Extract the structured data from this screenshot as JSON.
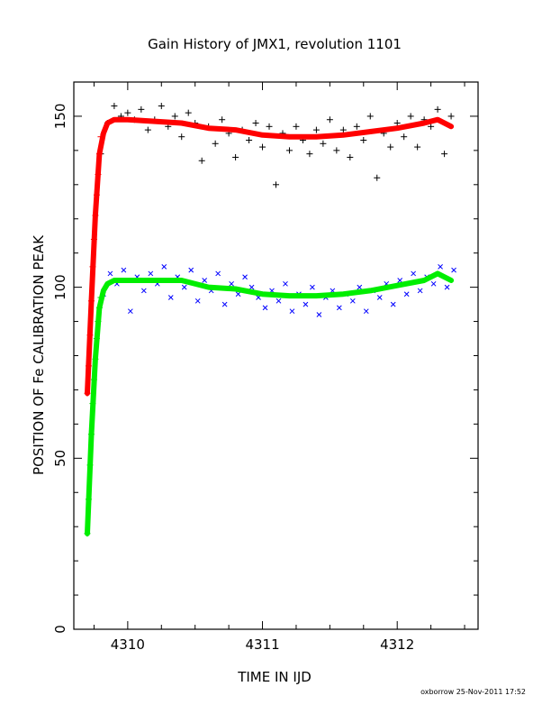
{
  "chart_data": {
    "type": "scatter",
    "title": "Gain History of JMX1, revolution 1101",
    "xlabel": "TIME IN IJD",
    "ylabel": "POSITION OF Fe CALIBRATION PEAK",
    "xlim": [
      4309.6,
      4312.6
    ],
    "ylim": [
      0,
      160
    ],
    "x_ticks": [
      4310,
      4311,
      4312
    ],
    "x_tick_labels": [
      "4310",
      "4311",
      "4312"
    ],
    "y_ticks": [
      0,
      50,
      100,
      150
    ],
    "y_tick_labels": [
      "0",
      "50",
      "100",
      "150"
    ],
    "grid": false,
    "footer": "oxborrow 25-Nov-2011 17:52",
    "series": [
      {
        "marker": "plus",
        "color": "#000000",
        "x": [
          4309.8,
          4309.85,
          4309.9,
          4309.95,
          4310.0,
          4310.05,
          4310.1,
          4310.15,
          4310.2,
          4310.25,
          4310.3,
          4310.35,
          4310.4,
          4310.45,
          4310.5,
          4310.55,
          4310.6,
          4310.65,
          4310.7,
          4310.75,
          4310.8,
          4310.85,
          4310.9,
          4310.95,
          4311.0,
          4311.05,
          4311.1,
          4311.15,
          4311.2,
          4311.25,
          4311.3,
          4311.35,
          4311.4,
          4311.45,
          4311.5,
          4311.55,
          4311.6,
          4311.65,
          4311.7,
          4311.75,
          4311.8,
          4311.85,
          4311.9,
          4311.95,
          4312.0,
          4312.05,
          4312.1,
          4312.15,
          4312.2,
          4312.25,
          4312.3,
          4312.35,
          4312.4
        ],
        "y": [
          139,
          148,
          153,
          150,
          151,
          149,
          152,
          146,
          149,
          153,
          147,
          150,
          144,
          151,
          148,
          137,
          147,
          142,
          149,
          145,
          138,
          146,
          143,
          148,
          141,
          147,
          130,
          145,
          140,
          147,
          143,
          139,
          146,
          142,
          149,
          140,
          146,
          138,
          147,
          143,
          150,
          132,
          145,
          141,
          148,
          144,
          150,
          141,
          149,
          147,
          152,
          139,
          150
        ]
      },
      {
        "marker": "cross",
        "color": "#0000ff",
        "x": [
          4309.82,
          4309.87,
          4309.92,
          4309.97,
          4310.02,
          4310.07,
          4310.12,
          4310.17,
          4310.22,
          4310.27,
          4310.32,
          4310.37,
          4310.42,
          4310.47,
          4310.52,
          4310.57,
          4310.62,
          4310.67,
          4310.72,
          4310.77,
          4310.82,
          4310.87,
          4310.92,
          4310.97,
          4311.02,
          4311.07,
          4311.12,
          4311.17,
          4311.22,
          4311.27,
          4311.32,
          4311.37,
          4311.42,
          4311.47,
          4311.52,
          4311.57,
          4311.62,
          4311.67,
          4311.72,
          4311.77,
          4311.82,
          4311.87,
          4311.92,
          4311.97,
          4312.02,
          4312.07,
          4312.12,
          4312.17,
          4312.22,
          4312.27,
          4312.32,
          4312.37,
          4312.42
        ],
        "y": [
          98,
          104,
          101,
          105,
          93,
          103,
          99,
          104,
          101,
          106,
          97,
          103,
          100,
          105,
          96,
          102,
          99,
          104,
          95,
          101,
          98,
          103,
          100,
          97,
          94,
          99,
          96,
          101,
          93,
          98,
          95,
          100,
          92,
          97,
          99,
          94,
          98,
          96,
          100,
          93,
          99,
          97,
          101,
          95,
          102,
          98,
          104,
          99,
          103,
          101,
          106,
          100,
          105
        ]
      },
      {
        "marker": "plus",
        "color": "#ff0000",
        "x": [
          4309.7,
          4309.71,
          4309.72,
          4309.73,
          4309.74,
          4309.75,
          4309.76,
          4309.77,
          4309.78,
          4309.79,
          4309.8
        ],
        "y": [
          69,
          77,
          86,
          96,
          106,
          114,
          121,
          127,
          133,
          139,
          144
        ]
      },
      {
        "marker": "plus",
        "color": "#00cc00",
        "x": [
          4309.7,
          4309.71,
          4309.72,
          4309.73,
          4309.74,
          4309.75,
          4309.76,
          4309.77,
          4309.78,
          4309.79,
          4309.8
        ],
        "y": [
          28,
          38,
          48,
          57,
          66,
          73,
          79,
          85,
          90,
          94,
          97
        ]
      },
      {
        "type": "line",
        "color": "#ff0000",
        "x": [
          4309.7,
          4309.73,
          4309.76,
          4309.79,
          4309.82,
          4309.85,
          4309.9,
          4310.0,
          4310.2,
          4310.4,
          4310.6,
          4310.8,
          4311.0,
          4311.2,
          4311.4,
          4311.6,
          4311.8,
          4312.0,
          4312.2,
          4312.3,
          4312.4
        ],
        "y": [
          69,
          96,
          121,
          139,
          145,
          148,
          149,
          149,
          148.5,
          148,
          146.5,
          146,
          144.5,
          144,
          144,
          144.5,
          145.5,
          146.5,
          148,
          149,
          147
        ]
      },
      {
        "type": "line",
        "color": "#00ee00",
        "x": [
          4309.7,
          4309.73,
          4309.76,
          4309.79,
          4309.82,
          4309.85,
          4309.9,
          4310.0,
          4310.2,
          4310.4,
          4310.6,
          4310.8,
          4311.0,
          4311.2,
          4311.4,
          4311.6,
          4311.8,
          4312.0,
          4312.2,
          4312.3,
          4312.4
        ],
        "y": [
          28,
          57,
          79,
          94,
          99,
          101,
          102,
          102,
          102,
          102,
          100,
          99.5,
          98,
          97.5,
          97.5,
          98,
          99,
          100.5,
          102,
          104,
          102
        ]
      }
    ]
  }
}
